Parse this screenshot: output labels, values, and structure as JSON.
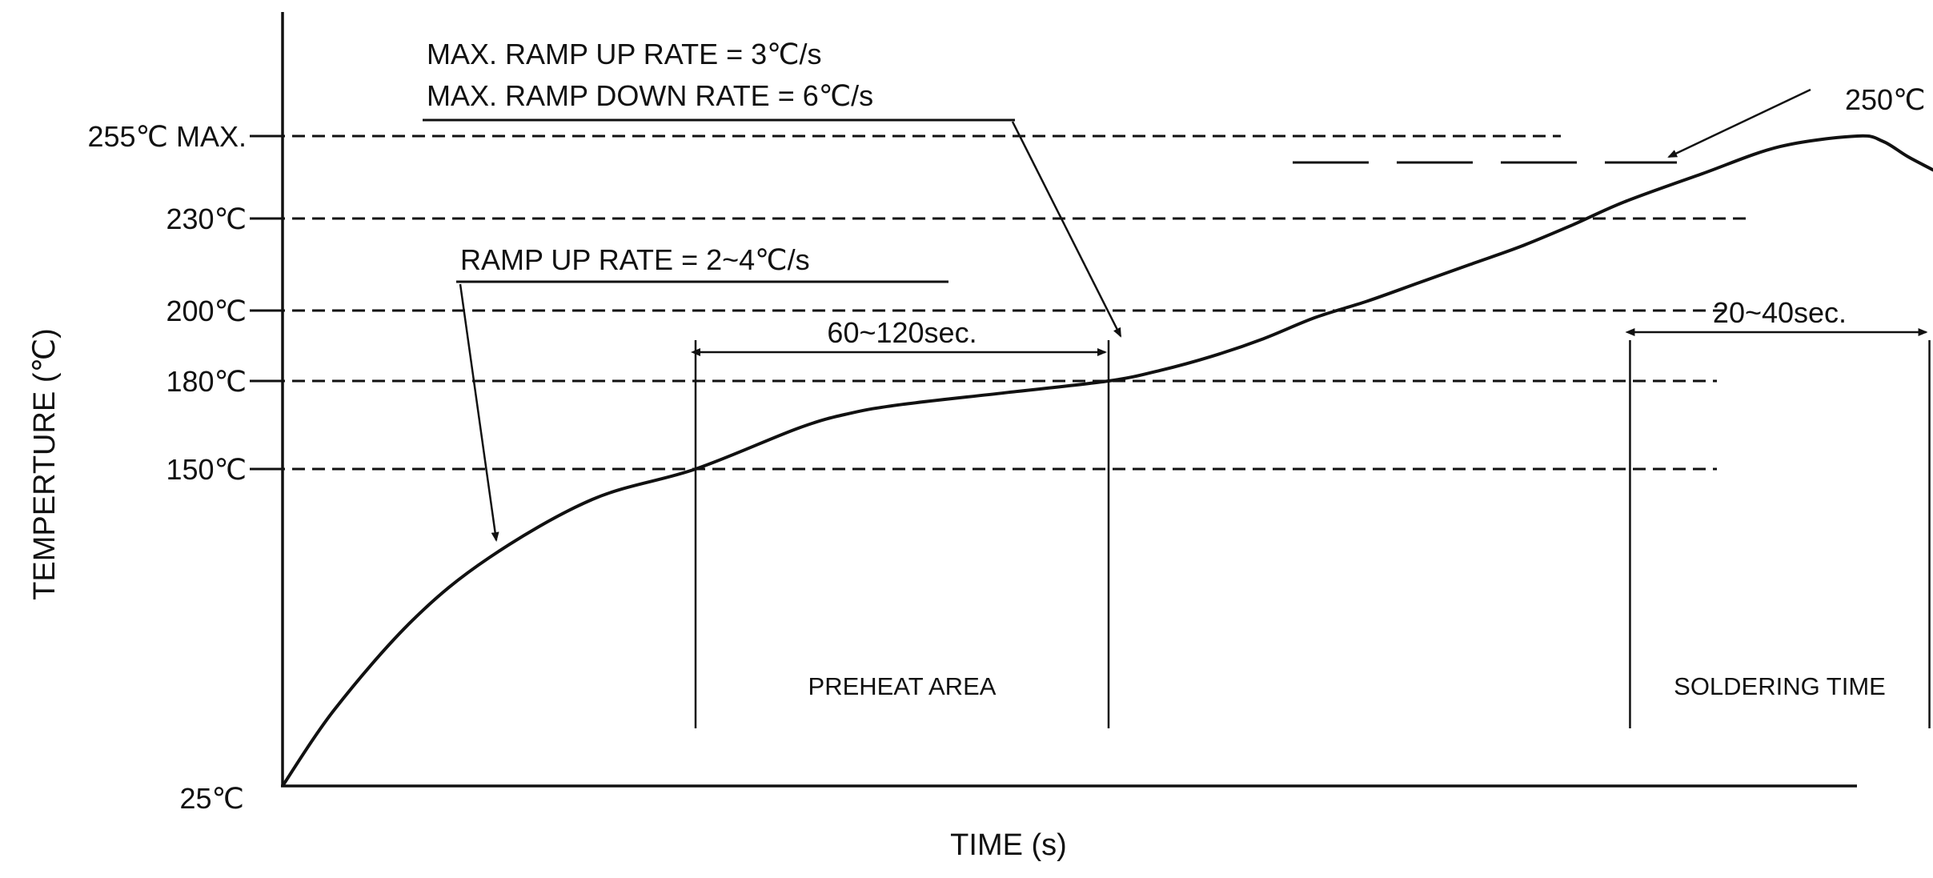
{
  "chart_data": {
    "type": "line",
    "title": "",
    "xlabel": "TIME (s)",
    "ylabel": "TEMPERTURE (℃)",
    "y_ticks": [
      {
        "value": 25,
        "label": "25℃"
      },
      {
        "value": 150,
        "label": "150℃"
      },
      {
        "value": 180,
        "label": "180℃"
      },
      {
        "value": 200,
        "label": "200℃"
      },
      {
        "value": 230,
        "label": "230℃"
      },
      {
        "value": 255,
        "label": "255℃ MAX."
      }
    ],
    "reference_lines": [
      {
        "value": 150,
        "style": "dashed"
      },
      {
        "value": 180,
        "style": "dashed"
      },
      {
        "value": 200,
        "style": "dashed"
      },
      {
        "value": 230,
        "style": "dashed"
      },
      {
        "value": 250,
        "style": "long-dash",
        "label": "250℃"
      },
      {
        "value": 255,
        "style": "dashed"
      }
    ],
    "series": [
      {
        "x": [
          0,
          10,
          25,
          40,
          60,
          80,
          100,
          110,
          120,
          140,
          160,
          170,
          180,
          190,
          200,
          210,
          220,
          230,
          240,
          250,
          260,
          275,
          290,
          305,
          310,
          315,
          322,
          330,
          340,
          350
        ],
        "y": [
          25,
          55,
          90,
          115,
          138,
          150,
          164,
          169,
          172,
          176,
          180,
          183,
          187,
          192,
          198,
          203,
          209,
          215,
          221,
          228,
          236,
          246,
          253,
          255,
          254,
          251,
          245,
          236,
          223,
          212
        ]
      }
    ],
    "regions": [
      {
        "name": "PREHEAT AREA",
        "x_start": 80,
        "x_end": 160,
        "span_label": "60~120sec."
      },
      {
        "name": "SOLDERING TIME",
        "x_start": 261,
        "x_end": 319,
        "span_label": "20~40sec."
      }
    ],
    "annotations": [
      {
        "text": "RAMP UP RATE = 2~4℃/s"
      },
      {
        "text": "MAX. RAMP UP RATE = 3℃/s"
      },
      {
        "text": "MAX. RAMP DOWN RATE = 6℃/s"
      }
    ],
    "grid": false
  }
}
